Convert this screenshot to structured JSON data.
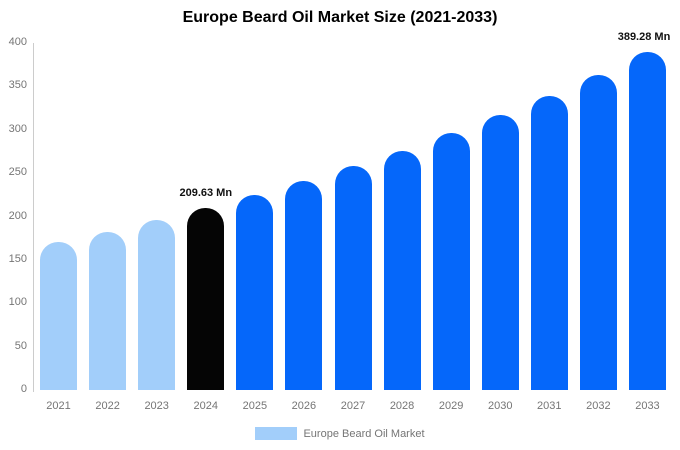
{
  "chart": {
    "title": "Europe Beard Oil Market Size (2021-2033)",
    "legend": {
      "label": "Europe Beard Oil Market",
      "swatch_color": "#a2cefa"
    }
  },
  "chart_data": {
    "type": "bar",
    "title": "Europe Beard Oil Market Size (2021-2033)",
    "categories": [
      "2021",
      "2022",
      "2023",
      "2024",
      "2025",
      "2026",
      "2027",
      "2028",
      "2029",
      "2030",
      "2031",
      "2032",
      "2033"
    ],
    "values": [
      170.5,
      182.7,
      195.7,
      209.63,
      224.6,
      240.5,
      257.7,
      276.0,
      295.7,
      316.7,
      339.3,
      363.4,
      389.28
    ],
    "bar_colors": [
      "#a2cefa",
      "#a2cefa",
      "#a2cefa",
      "#050505",
      "#0567fa",
      "#0567fa",
      "#0567fa",
      "#0567fa",
      "#0567fa",
      "#0567fa",
      "#0567fa",
      "#0567fa",
      "#0567fa"
    ],
    "annotations": [
      {
        "category": "2024",
        "text": "209.63 Mn"
      },
      {
        "category": "2033",
        "text": "389.28 Mn"
      }
    ],
    "xlabel": "",
    "ylabel": "",
    "ylim": [
      0,
      400
    ],
    "yticks": [
      0,
      50,
      100,
      150,
      200,
      250,
      300,
      350,
      400
    ],
    "grid": false,
    "legend_position": "bottom",
    "legend_entries": [
      {
        "label": "Europe Beard Oil Market",
        "color": "#a2cefa"
      }
    ],
    "colors": {
      "historical": "#a2cefa",
      "base_year": "#050505",
      "forecast": "#0567fa",
      "axis_line": "#cccccc",
      "tick_text": "#757575"
    }
  }
}
